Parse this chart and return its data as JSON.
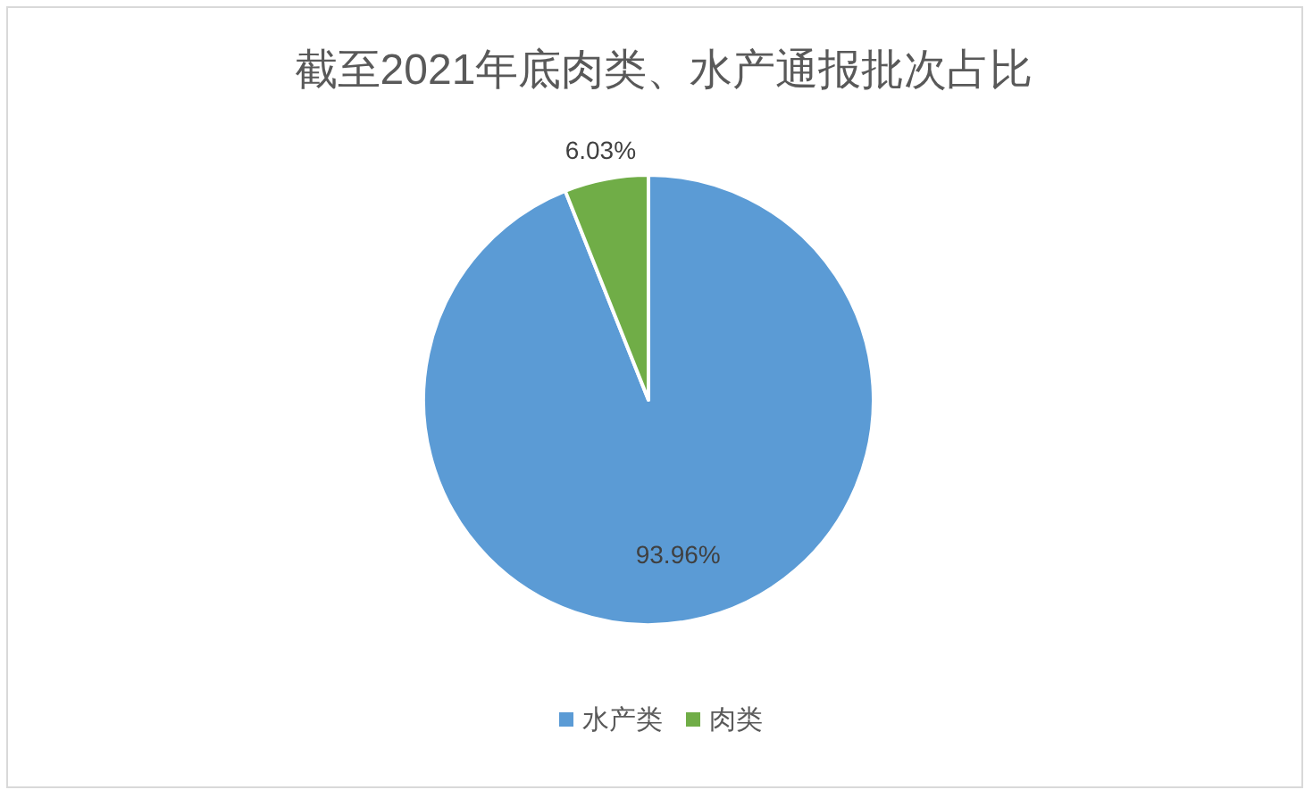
{
  "chart_data": {
    "type": "pie",
    "title": "截至2021年底肉类、水产通报批次占比",
    "categories": [
      "水产类",
      "肉类"
    ],
    "values": [
      93.96,
      6.03
    ],
    "colors": [
      "#5b9bd5",
      "#70ad47"
    ],
    "value_labels": [
      "93.96%",
      "6.03%"
    ],
    "legend": "bottom"
  }
}
